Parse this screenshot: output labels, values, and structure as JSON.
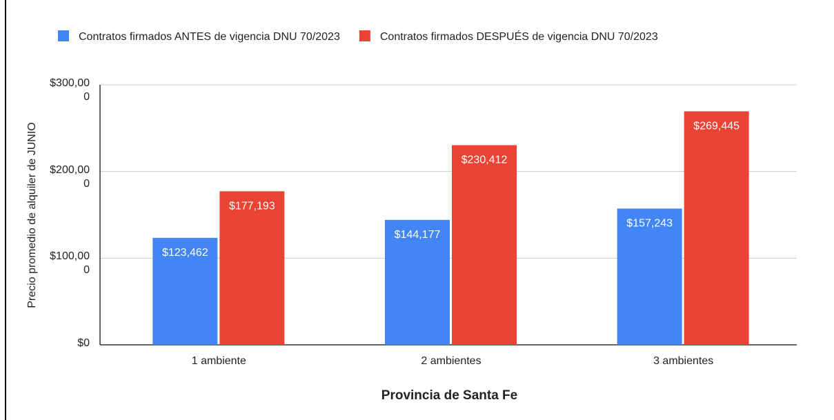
{
  "chart_data": {
    "type": "bar",
    "x_label": "Provincia de Santa Fe",
    "y_label": "Precio promedio de alquiler de JUNIO",
    "categories": [
      "1 ambiente",
      "2 ambientes",
      "3 ambientes"
    ],
    "series": [
      {
        "name": "Contratos firmados ANTES de vigencia DNU 70/2023",
        "color": "#4285f4",
        "values": [
          123462,
          144177,
          157243
        ],
        "value_labels": [
          "$123,462",
          "$144,177",
          "$157,243"
        ]
      },
      {
        "name": "Contratos firmados DESPUÉS de vigencia DNU 70/2023",
        "color": "#ea4335",
        "values": [
          177193,
          230412,
          269445
        ],
        "value_labels": [
          "$177,193",
          "$230,412",
          "$269,445"
        ]
      }
    ],
    "ylim": [
      0,
      300000
    ],
    "yticks": [
      {
        "value": 0,
        "label": "$0"
      },
      {
        "value": 100000,
        "label": "$100,000"
      },
      {
        "value": 200000,
        "label": "$200,000"
      },
      {
        "value": 300000,
        "label": "$300,000"
      }
    ],
    "grid": true,
    "legend": "top"
  }
}
